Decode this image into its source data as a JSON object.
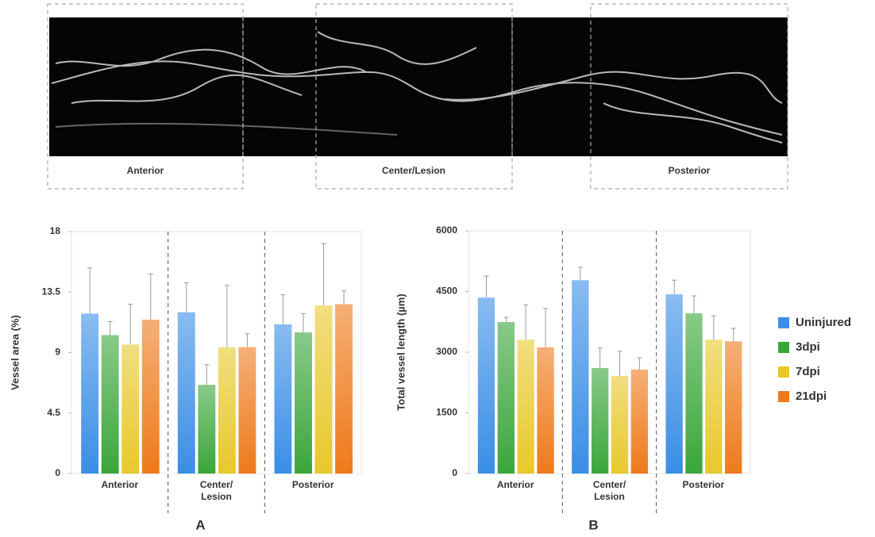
{
  "image_panel": {
    "regions": [
      "Anterior",
      "Center/Lesion",
      "Posterior"
    ]
  },
  "chart_data": [
    {
      "type": "bar",
      "label": "A",
      "y_label": "Vessel area (%)",
      "categories": [
        "Anterior",
        "Center/\nLesion",
        "Posterior"
      ],
      "ylim": [
        0,
        18
      ],
      "yticks": [
        0,
        4.5,
        9,
        13.5,
        18
      ],
      "separators": true,
      "series": [
        {
          "color": "#3a8ee6",
          "values": [
            11.9,
            12.0,
            11.1
          ],
          "errors": [
            3.4,
            2.2,
            2.2
          ]
        },
        {
          "color": "#3aa63a",
          "values": [
            10.3,
            6.6,
            10.5
          ],
          "errors": [
            1.0,
            1.5,
            1.4
          ]
        },
        {
          "color": "#e8c82a",
          "values": [
            9.6,
            9.4,
            12.5
          ],
          "errors": [
            3.0,
            4.6,
            4.6
          ]
        },
        {
          "color": "#ee7a1a",
          "values": [
            11.45,
            9.4,
            12.6
          ],
          "errors": [
            3.4,
            1.0,
            1.0
          ]
        }
      ]
    },
    {
      "type": "bar",
      "label": "B",
      "y_label": "Total vessel length (µm)",
      "categories": [
        "Anterior",
        "Center/\nLesion",
        "Posterior"
      ],
      "ylim": [
        0,
        6000
      ],
      "yticks": [
        0,
        1500,
        3000,
        4500,
        6000
      ],
      "separators": true,
      "series": [
        {
          "name": "Uninjured",
          "color": "#3a8ee6",
          "values": [
            4350,
            4780,
            4430
          ],
          "errors": [
            530,
            320,
            350
          ]
        },
        {
          "name": "3dpi",
          "color": "#3aa63a",
          "values": [
            3745,
            2610,
            3960
          ],
          "errors": [
            115,
            490,
            430
          ]
        },
        {
          "name": "7dpi",
          "color": "#e8c82a",
          "values": [
            3310,
            2410,
            3310
          ],
          "errors": [
            860,
            610,
            590
          ]
        },
        {
          "name": "21dpi",
          "color": "#ee7a1a",
          "values": [
            3120,
            2570,
            3270
          ],
          "errors": [
            960,
            290,
            320
          ]
        }
      ]
    }
  ]
}
